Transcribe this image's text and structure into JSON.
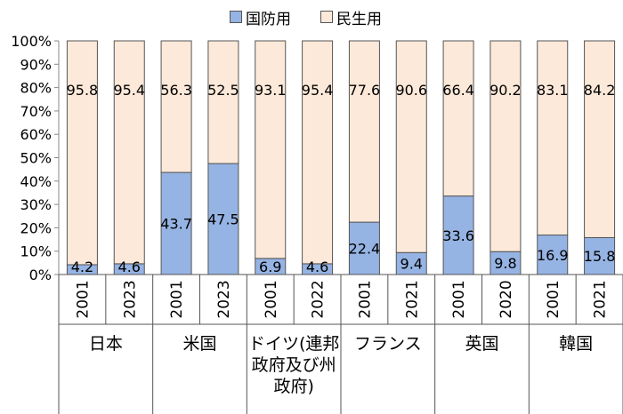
{
  "chart_data": {
    "type": "bar",
    "stacked": true,
    "normalized": true,
    "yaxis": {
      "ylim": [
        0,
        100
      ],
      "tick_labels": [
        "0%",
        "10%",
        "20%",
        "30%",
        "40%",
        "50%",
        "60%",
        "70%",
        "80%",
        "90%",
        "100%"
      ]
    },
    "series": [
      {
        "name": "国防用",
        "color": "#95b3e3",
        "values": [
          4.2,
          4.6,
          43.7,
          47.5,
          6.9,
          4.6,
          22.4,
          9.4,
          33.6,
          9.8,
          16.9,
          15.8
        ]
      },
      {
        "name": "民生用",
        "color": "#fde9d9",
        "values": [
          95.8,
          95.4,
          56.3,
          52.5,
          93.1,
          95.4,
          77.6,
          90.6,
          66.4,
          90.2,
          83.1,
          84.2
        ]
      }
    ],
    "groups": [
      {
        "label": [
          "日本"
        ],
        "years": [
          "2001",
          "2023"
        ]
      },
      {
        "label": [
          "米国"
        ],
        "years": [
          "2001",
          "2023"
        ]
      },
      {
        "label": [
          "ドイツ(連邦",
          "政府及び州",
          "政府)"
        ],
        "years": [
          "2001",
          "2022"
        ]
      },
      {
        "label": [
          "フランス"
        ],
        "years": [
          "2001",
          "2021"
        ]
      },
      {
        "label": [
          "英国"
        ],
        "years": [
          "2001",
          "2020"
        ]
      },
      {
        "label": [
          "韓国"
        ],
        "years": [
          "2001",
          "2021"
        ]
      }
    ],
    "legend": "top-center",
    "grid": false
  }
}
